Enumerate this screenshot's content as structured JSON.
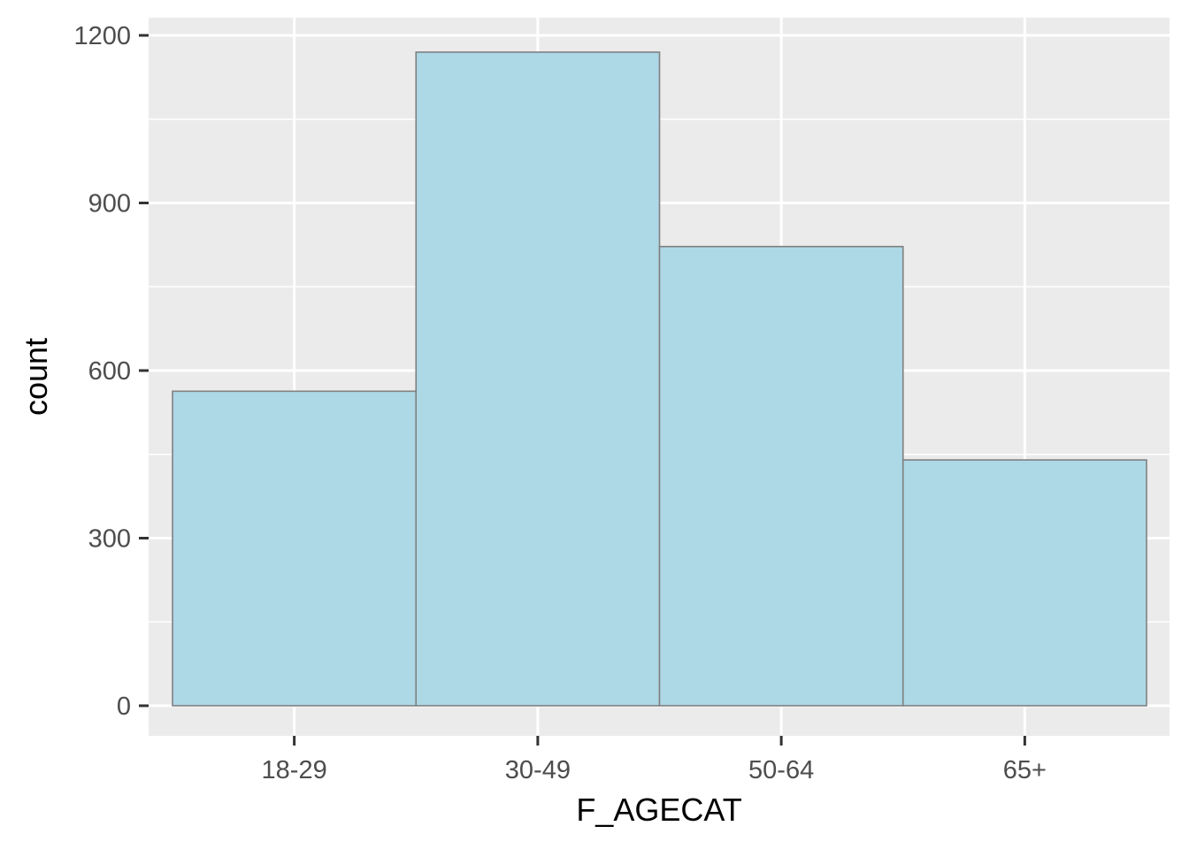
{
  "chart_data": {
    "type": "bar",
    "title": "",
    "xlabel": "F_AGECAT",
    "ylabel": "count",
    "categories": [
      "18-29",
      "30-49",
      "50-64",
      "65+"
    ],
    "values": [
      563,
      1170,
      822,
      440
    ],
    "ylim": [
      0,
      1200
    ],
    "yticks": [
      0,
      300,
      600,
      900,
      1200
    ],
    "grid": true,
    "legend": "none",
    "colors": {
      "panel_background": "#ebebeb",
      "grid": "#ffffff",
      "bar_fill": "#add8e6",
      "bar_outline": "#808080",
      "tick_text": "#4d4d4d",
      "axis_ticks": "#333333"
    }
  }
}
